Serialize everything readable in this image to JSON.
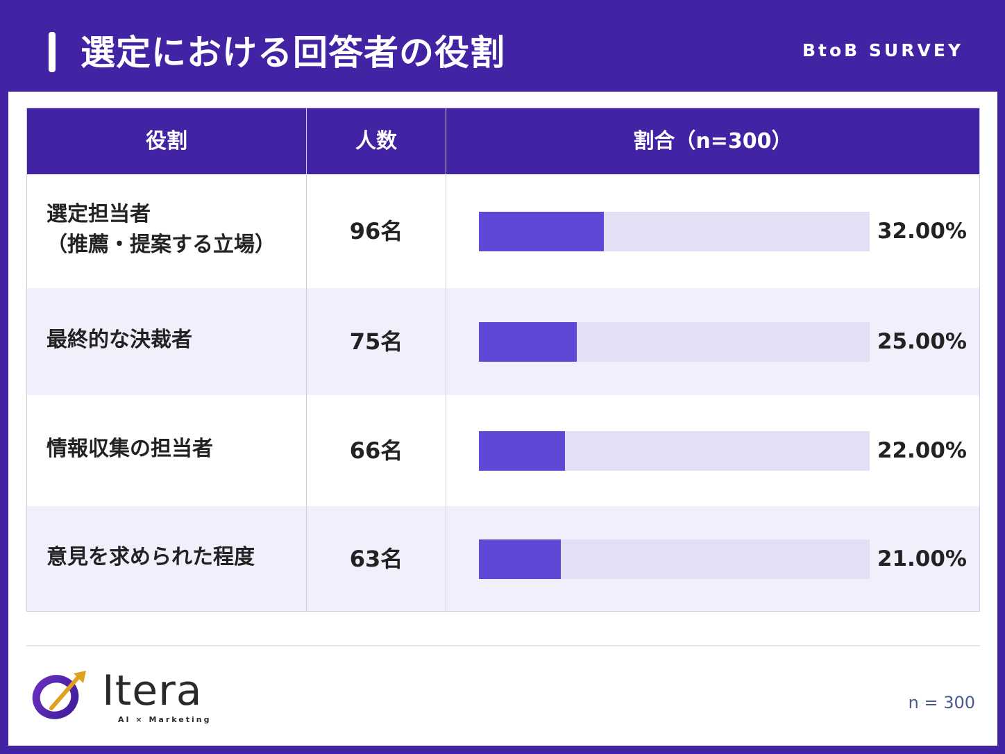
{
  "header": {
    "title": "選定における回答者の役割",
    "tag": "BtoB SURVEY"
  },
  "table": {
    "headers": [
      "役割",
      "人数",
      "割合（n=300）"
    ]
  },
  "chart_data": {
    "type": "bar",
    "orientation": "horizontal",
    "categories": [
      "選定担当者\n（推薦・提案する立場）",
      "最終的な決裁者",
      "情報収集の担当者",
      "意見を求められた程度"
    ],
    "series": [
      {
        "values": [
          32.0,
          25.0,
          22.0,
          21.0
        ]
      }
    ],
    "counts": [
      "96名",
      "75名",
      "66名",
      "63名"
    ],
    "labels": [
      "32.00%",
      "25.00%",
      "22.00%",
      "21.00%"
    ],
    "xlim": [
      0,
      100
    ],
    "colors": {
      "fill": "#5f48d6",
      "track": "#e3e0f6"
    }
  },
  "footer": {
    "logo_name": "Itera",
    "logo_sub": "AI × Marketing",
    "note": "n = 300"
  },
  "colors": {
    "primary": "#4223a3",
    "bar": "#5f48d6",
    "row_alt": "#f0effb"
  }
}
